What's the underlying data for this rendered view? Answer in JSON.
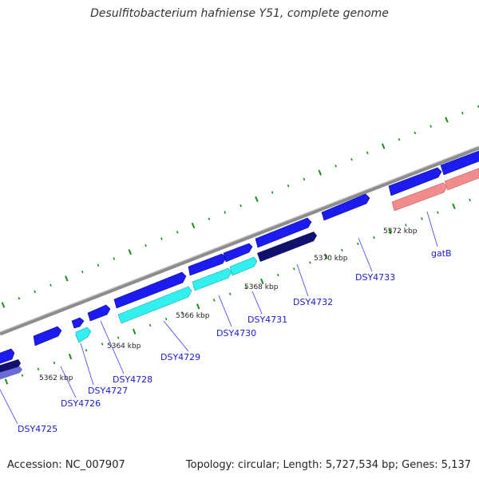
{
  "title": "Desulfitobacterium hafniense Y51, complete genome",
  "footer": {
    "accession": "Accession: NC_007907",
    "summary": "Topology: circular; Length: 5,727,534 bp; Genes: 5,137"
  },
  "colors": {
    "backbone": "#8c8c8c",
    "gene_forward": "#1c1cf0",
    "gene_cyan": "#33f0f0",
    "gene_navy": "#10106e",
    "gene_pink": "#f08c8c",
    "gene_slate": "#6a6ad8",
    "tick": "#1f8a1f",
    "label": "#1a1ad6"
  },
  "tick_labels": [
    "5362 kbp",
    "5364 kbp",
    "5366 kbp",
    "5368 kbp",
    "5370 kbp",
    "5372 kbp"
  ],
  "gene_labels": [
    "DSY4725",
    "DSY4726",
    "DSY4727",
    "DSY4728",
    "DSY4729",
    "DSY4730",
    "DSY4731",
    "DSY4732",
    "DSY4733",
    "gatB"
  ]
}
